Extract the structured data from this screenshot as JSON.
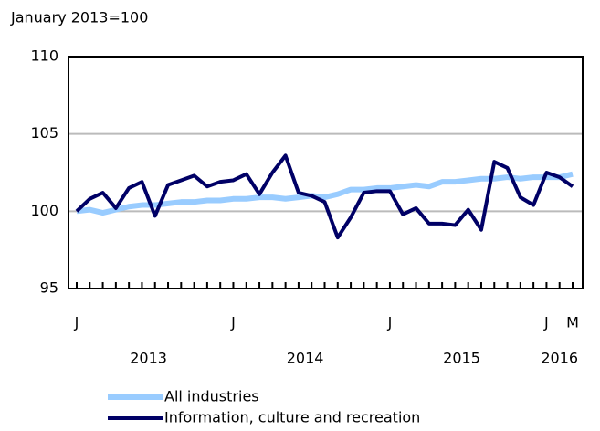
{
  "chart_data": {
    "type": "line",
    "y_axis_label": "January 2013=100",
    "categories": [
      "J",
      null,
      null,
      null,
      null,
      null,
      null,
      null,
      null,
      null,
      null,
      null,
      "J",
      null,
      null,
      null,
      null,
      null,
      null,
      null,
      null,
      null,
      null,
      null,
      "J",
      null,
      null,
      null,
      null,
      null,
      null,
      null,
      null,
      null,
      null,
      null,
      "J",
      null,
      "M"
    ],
    "years": [
      "2013",
      "2014",
      "2015",
      "2016"
    ],
    "series": [
      {
        "name": "All industries",
        "color": "#99ccff",
        "values": [
          100.0,
          100.1,
          99.9,
          100.1,
          100.3,
          100.4,
          100.4,
          100.5,
          100.6,
          100.6,
          100.7,
          100.7,
          100.8,
          100.8,
          100.9,
          100.9,
          100.8,
          100.9,
          101.0,
          100.9,
          101.1,
          101.4,
          101.4,
          101.5,
          101.5,
          101.6,
          101.7,
          101.6,
          101.9,
          101.9,
          102.0,
          102.1,
          102.1,
          102.2,
          102.1,
          102.2,
          102.2,
          102.2,
          102.4
        ]
      },
      {
        "name": "Information, culture and recreation",
        "color": "#000066",
        "values": [
          100.0,
          100.8,
          101.2,
          100.2,
          101.5,
          101.9,
          99.7,
          101.7,
          102.0,
          102.3,
          101.6,
          101.9,
          102.0,
          102.4,
          101.1,
          102.5,
          103.6,
          101.2,
          101.0,
          100.6,
          98.3,
          99.6,
          101.2,
          101.3,
          101.3,
          99.8,
          100.2,
          99.2,
          99.2,
          99.1,
          100.1,
          98.8,
          103.2,
          102.8,
          100.9,
          100.4,
          102.5,
          102.2,
          101.6
        ]
      }
    ],
    "ylim": [
      95,
      110
    ],
    "yticks": [
      95,
      100,
      105,
      110
    ],
    "grid": true
  }
}
